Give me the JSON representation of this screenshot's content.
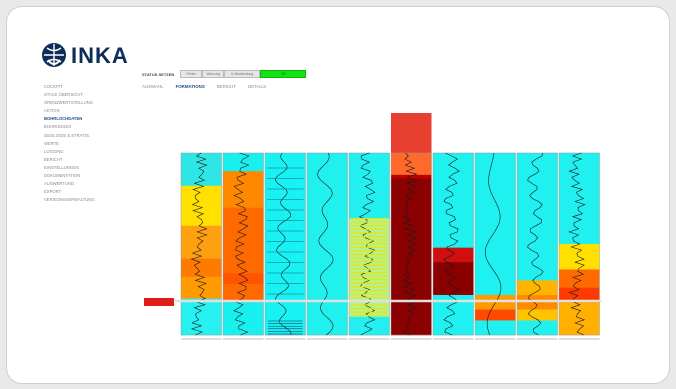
{
  "logo": {
    "text": "INKA",
    "icon": "globe-hand-icon",
    "colors": {
      "brand": "#0d2c57"
    }
  },
  "sidebar": {
    "items": [
      {
        "label": "Cockpit",
        "active": false
      },
      {
        "label": "Stack Übersicht",
        "active": false
      },
      {
        "label": "Grenzwertstellung",
        "active": false
      },
      {
        "label": "Aktion",
        "active": false
      },
      {
        "label": "Bohrlochdaten",
        "active": true
      },
      {
        "label": "Bohrungen",
        "active": false
      },
      {
        "label": "Geologie & Stratig.",
        "active": false
      },
      {
        "label": "Werte",
        "active": false
      },
      {
        "label": "Logging",
        "active": false
      },
      {
        "label": "Bericht",
        "active": false
      },
      {
        "label": "Einstellungen",
        "active": false
      },
      {
        "label": "Dokumentation",
        "active": false
      },
      {
        "label": "Auswertung",
        "active": false
      },
      {
        "label": "Export",
        "active": false
      },
      {
        "label": "Versionsverwaltung",
        "active": false
      }
    ]
  },
  "status": {
    "label": "STATUS SETZEN",
    "segments": [
      {
        "label": "Fehler",
        "state": "off"
      },
      {
        "label": "Warnung",
        "state": "off"
      },
      {
        "label": "In Bearbeitung",
        "state": "off"
      },
      {
        "label": "OK",
        "state": "on"
      }
    ]
  },
  "tabs": [
    {
      "label": "Auswahl",
      "active": false
    },
    {
      "label": "Formations",
      "active": true
    },
    {
      "label": "Bericht",
      "active": false
    },
    {
      "label": "Details",
      "active": false
    }
  ],
  "chart_data": {
    "type": "heatmap",
    "title": "",
    "tracks": [
      {
        "id": "t1",
        "bands": [
          [
            0,
            0.18,
            "#2ee6e6"
          ],
          [
            0.18,
            0.4,
            "#ffe000"
          ],
          [
            0.4,
            0.58,
            "#ffa010"
          ],
          [
            0.58,
            0.68,
            "#ff7a00"
          ],
          [
            0.68,
            0.8,
            "#ff9a00"
          ],
          [
            0.8,
            1.0,
            "#26f0f0"
          ]
        ]
      },
      {
        "id": "t2",
        "bands": [
          [
            0,
            0.1,
            "#18f0f0"
          ],
          [
            0.1,
            0.3,
            "#ff8800"
          ],
          [
            0.3,
            0.66,
            "#ff6a00"
          ],
          [
            0.66,
            0.72,
            "#ff5500"
          ],
          [
            0.72,
            0.82,
            "#ff6a00"
          ],
          [
            0.82,
            1.0,
            "#18f0f0"
          ]
        ]
      },
      {
        "id": "t3",
        "bands": [
          [
            0,
            1.0,
            "#19f2f2"
          ]
        ]
      },
      {
        "id": "t4",
        "bands": [
          [
            0,
            1.0,
            "#20f0ee"
          ]
        ]
      },
      {
        "id": "t5",
        "bands": [
          [
            0,
            0.36,
            "#22f0f0"
          ],
          [
            0.36,
            0.9,
            "#b8f090"
          ],
          [
            0.9,
            1.0,
            "#22f0f0"
          ]
        ]
      },
      {
        "id": "t6",
        "bands": [
          [
            0,
            0.12,
            "#ff6a2a"
          ],
          [
            0.12,
            0.14,
            "#c00000"
          ],
          [
            0.14,
            1.0,
            "#8b0000"
          ]
        ]
      },
      {
        "id": "t7",
        "bands": [
          [
            0,
            0.52,
            "#1ff0f0"
          ],
          [
            0.52,
            0.6,
            "#d01010"
          ],
          [
            0.6,
            0.78,
            "#8a0000"
          ],
          [
            0.78,
            1.0,
            "#1ff0f0"
          ]
        ]
      },
      {
        "id": "t8",
        "bands": [
          [
            0,
            0.78,
            "#1ff0f0"
          ],
          [
            0.78,
            0.86,
            "#ff9a00"
          ],
          [
            0.86,
            0.92,
            "#ff4a00"
          ],
          [
            0.92,
            1.0,
            "#1ff0f0"
          ]
        ]
      },
      {
        "id": "t9",
        "bands": [
          [
            0,
            0.7,
            "#20f0f0"
          ],
          [
            0.7,
            0.78,
            "#ffb400"
          ],
          [
            0.78,
            0.86,
            "#ff8a00"
          ],
          [
            0.86,
            0.92,
            "#ffc400"
          ],
          [
            0.92,
            1.0,
            "#20f0f0"
          ]
        ]
      },
      {
        "id": "t10",
        "bands": [
          [
            0,
            0.5,
            "#20f0f0"
          ],
          [
            0.5,
            0.64,
            "#ffe000"
          ],
          [
            0.64,
            0.74,
            "#ff6a00"
          ],
          [
            0.74,
            0.82,
            "#ff3a00"
          ],
          [
            0.82,
            1.0,
            "#ffb000"
          ]
        ]
      }
    ],
    "colors": {
      "highlight": "#e11a1a",
      "top_header": "#e84030"
    }
  }
}
